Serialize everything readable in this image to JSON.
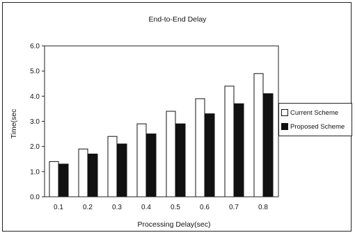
{
  "chart_data": {
    "type": "bar",
    "title": "End-to-End Delay",
    "xlabel": "Processing Delay(sec)",
    "ylabel": "Time(sec",
    "categories": [
      "0.1",
      "0.2",
      "0.3",
      "0.4",
      "0.5",
      "0.6",
      "0.7",
      "0.8"
    ],
    "yticks": [
      "0.0",
      "1.0",
      "2.0",
      "3.0",
      "4.0",
      "5.0",
      "6.0"
    ],
    "ylim": [
      0,
      6
    ],
    "grid": false,
    "legend_position": "right",
    "series": [
      {
        "name": "Current Scheme",
        "color": "#ffffff",
        "values": [
          1.4,
          1.9,
          2.4,
          2.9,
          3.4,
          3.9,
          4.4,
          4.9
        ]
      },
      {
        "name": "Proposed Scheme",
        "color": "#111111",
        "values": [
          1.3,
          1.7,
          2.1,
          2.5,
          2.9,
          3.3,
          3.7,
          4.1
        ]
      }
    ]
  }
}
